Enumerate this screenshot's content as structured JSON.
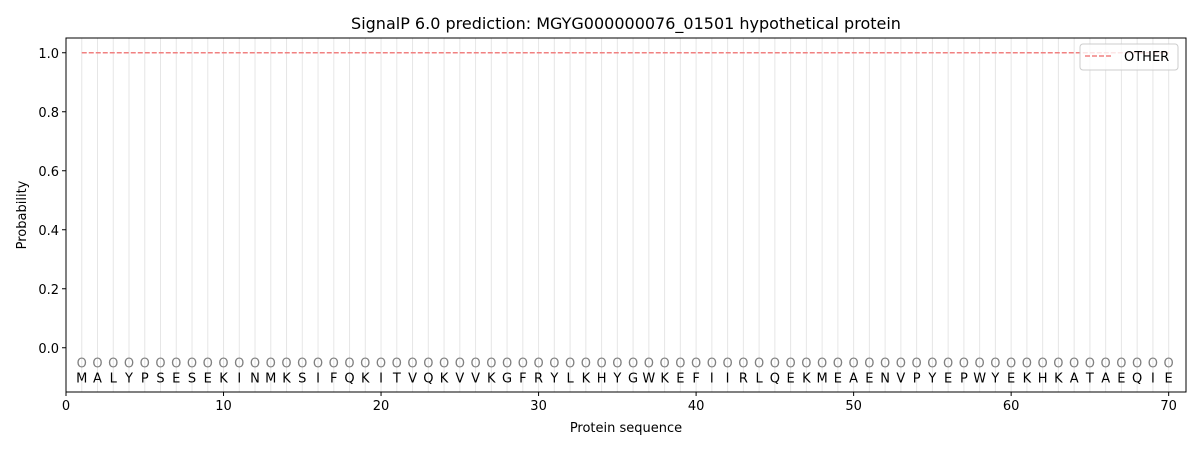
{
  "chart_data": {
    "type": "line",
    "title": "SignalP 6.0 prediction: MGYG000000076_01501 hypothetical protein",
    "xlabel": "Protein sequence",
    "ylabel": "Probability",
    "xlim": [
      0,
      71.1
    ],
    "ylim": [
      -0.15,
      1.05
    ],
    "xticks": [
      0,
      10,
      20,
      30,
      40,
      50,
      60,
      70
    ],
    "yticks": [
      0.0,
      0.2,
      0.4,
      0.6,
      0.8,
      1.0
    ],
    "ytick_labels": [
      "0.0",
      "0.2",
      "0.4",
      "0.6",
      "0.8",
      "1.0"
    ],
    "grid": "vertical lines at each residue",
    "legend_placement": "top-right",
    "sequence": "MALYPSESEKINMKSIFQKITVQKVVKGFRYLKHYGWKEFIIRLQEKMEAENVPYEPWYEKHKATAEQIE",
    "predicted_labels": "OOOOOOOOOOOOOOOOOOOOOOOOOOOOOOOOOOOOOOOOOOOOOOOOOOOOOOOOOOOOOOOOOOOOOO",
    "series": [
      {
        "name": "OTHER",
        "color": "#f08080",
        "style": "dashed",
        "x_range": [
          1,
          70
        ],
        "value": 1.0
      }
    ]
  }
}
